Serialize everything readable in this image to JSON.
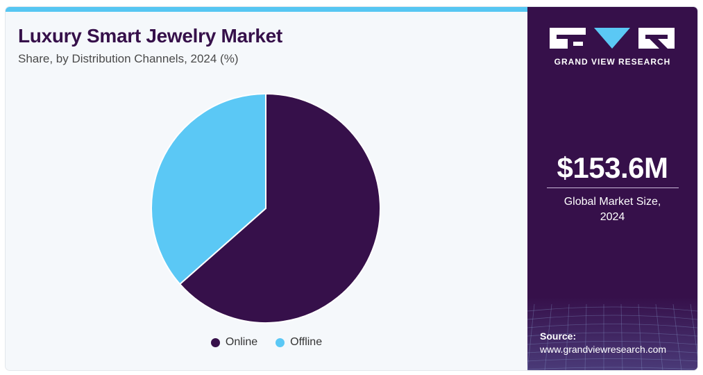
{
  "chart_data": {
    "type": "pie",
    "title": "Luxury Smart Jewelry Market",
    "subtitle": "Share, by Distribution Channels, 2024 (%)",
    "categories": [
      "Online",
      "Offline"
    ],
    "values": [
      63.5,
      36.5
    ],
    "colors": [
      "#36104a",
      "#5bc8f5"
    ],
    "legend_position": "bottom"
  },
  "sidebar": {
    "brand": "GRAND VIEW RESEARCH",
    "market_value": "$153.6M",
    "market_caption_line1": "Global Market Size,",
    "market_caption_line2": "2024",
    "source_label": "Source:",
    "source_url": "www.grandviewresearch.com"
  },
  "colors": {
    "accent_bar": "#56c6f2",
    "sidebar_bg": "#36104a",
    "title_color": "#36104a"
  },
  "icons": {
    "logo": "gvr-logo-icon"
  }
}
